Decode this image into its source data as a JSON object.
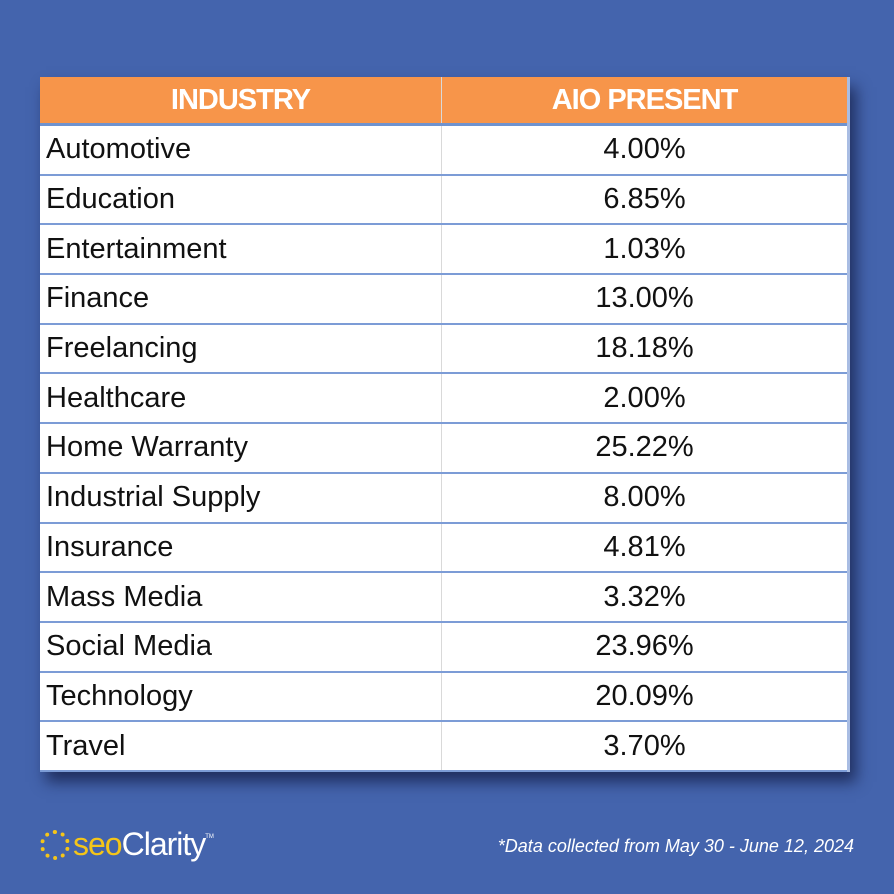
{
  "table": {
    "headers": [
      "INDUSTRY",
      "AIO PRESENT"
    ],
    "rows": [
      [
        "Automotive",
        "4.00%"
      ],
      [
        "Education",
        "6.85%"
      ],
      [
        "Entertainment",
        "1.03%"
      ],
      [
        "Finance",
        "13.00%"
      ],
      [
        "Freelancing",
        "18.18%"
      ],
      [
        "Healthcare",
        "2.00%"
      ],
      [
        "Home Warranty",
        "25.22%"
      ],
      [
        "Industrial Supply",
        "8.00%"
      ],
      [
        "Insurance",
        "4.81%"
      ],
      [
        "Mass Media",
        "3.32%"
      ],
      [
        "Social Media",
        "23.96%"
      ],
      [
        "Technology",
        "20.09%"
      ],
      [
        "Travel",
        "3.70%"
      ]
    ]
  },
  "footer": {
    "logo": {
      "part1": "seo",
      "part2": "Clarity",
      "tm": "TM"
    },
    "note": "*Data collected from May 30 - June 12, 2024"
  },
  "colors": {
    "background": "#4464ad",
    "header": "#f7954a",
    "logo_accent": "#f5c518"
  }
}
